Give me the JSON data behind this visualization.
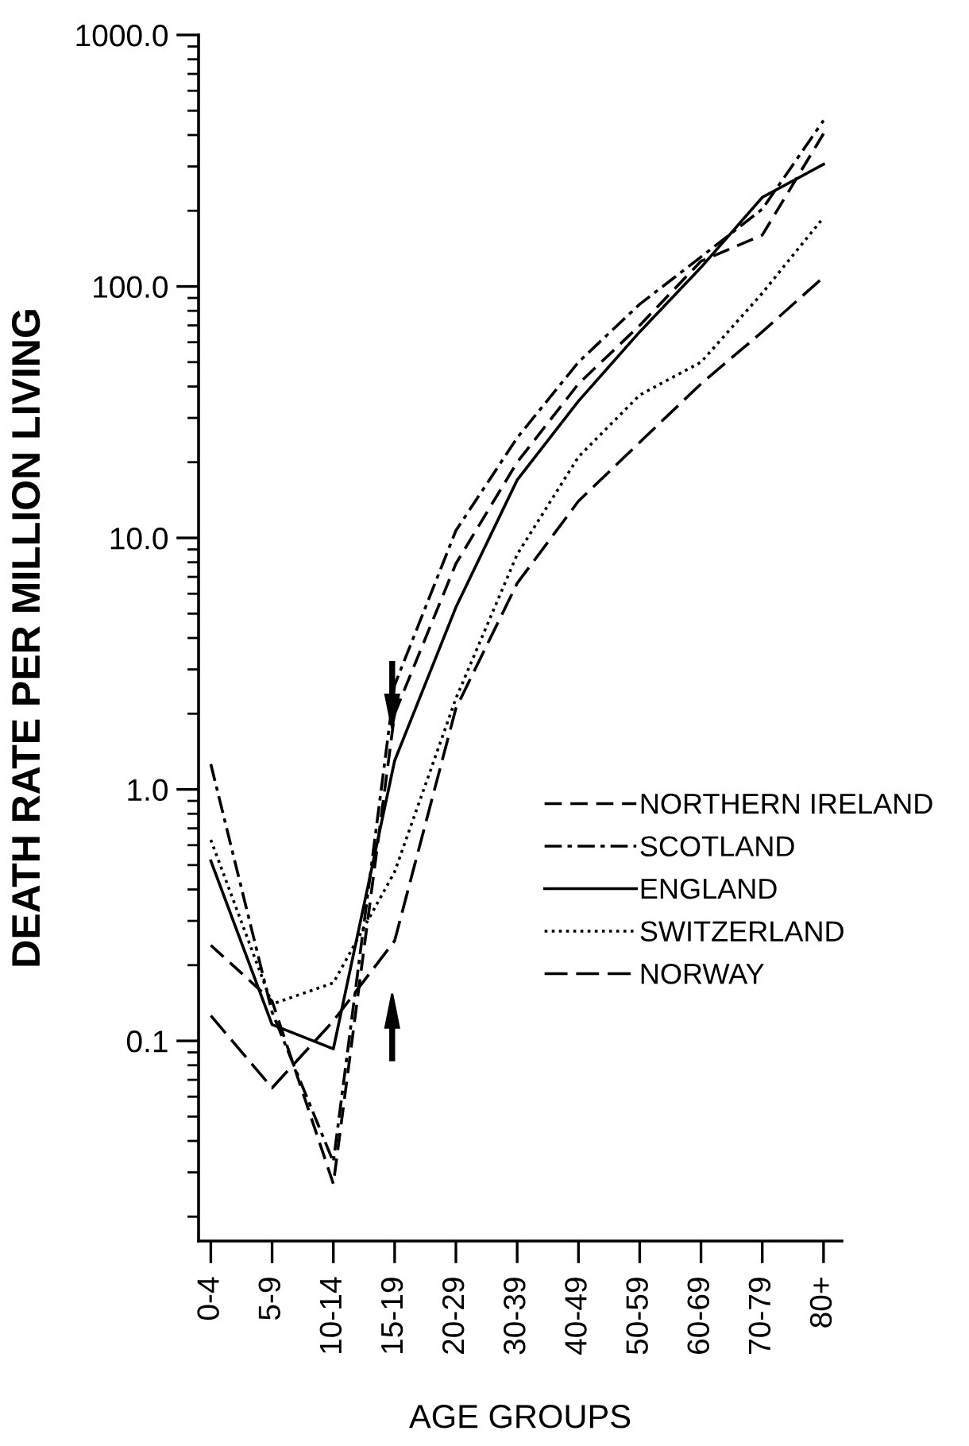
{
  "chart_data": {
    "type": "line",
    "xlabel": "AGE GROUPS",
    "ylabel": "DEATH RATE PER MILLION LIVING",
    "categories": [
      "0-4",
      "5-9",
      "10-14",
      "15-19",
      "20-29",
      "30-39",
      "40-49",
      "50-59",
      "60-69",
      "70-79",
      "80+"
    ],
    "log": "y",
    "ylim": [
      0.016,
      1000
    ],
    "yticks": [
      {
        "value": 0.1,
        "label": "0.1"
      },
      {
        "value": 1,
        "label": "1.0"
      },
      {
        "value": 10,
        "label": "10.0"
      },
      {
        "value": 100,
        "label": "100.0"
      },
      {
        "value": 1000,
        "label": "1000.0"
      }
    ],
    "grid": false,
    "legend": "right",
    "marker": "none",
    "series": [
      {
        "name": "NORTHERN IRELAND",
        "color": "#000000",
        "line_style": "dashed",
        "values": [
          0.24,
          0.144,
          0.027,
          2.0,
          7.9,
          20,
          41,
          70,
          126,
          160,
          405
        ]
      },
      {
        "name": "SCOTLAND",
        "color": "#000000",
        "line_style": "dashdot",
        "values": [
          1.26,
          0.13,
          0.033,
          2.6,
          10.7,
          25,
          50,
          85,
          131,
          203,
          457
        ]
      },
      {
        "name": "ENGLAND",
        "color": "#000000",
        "line_style": "solid",
        "values": [
          0.52,
          0.116,
          0.093,
          1.3,
          5.3,
          17,
          35,
          66,
          119,
          226,
          306
        ]
      },
      {
        "name": "SWITZERLAND",
        "color": "#000000",
        "line_style": "dotted",
        "values": [
          0.63,
          0.14,
          0.17,
          0.47,
          2.3,
          8.6,
          21,
          37,
          50,
          94,
          188
        ]
      },
      {
        "name": "NORWAY",
        "color": "#000000",
        "line_style": "longdash",
        "values": [
          0.126,
          0.065,
          0.12,
          0.25,
          2.1,
          6.6,
          14,
          24,
          41,
          66,
          109
        ]
      }
    ]
  }
}
